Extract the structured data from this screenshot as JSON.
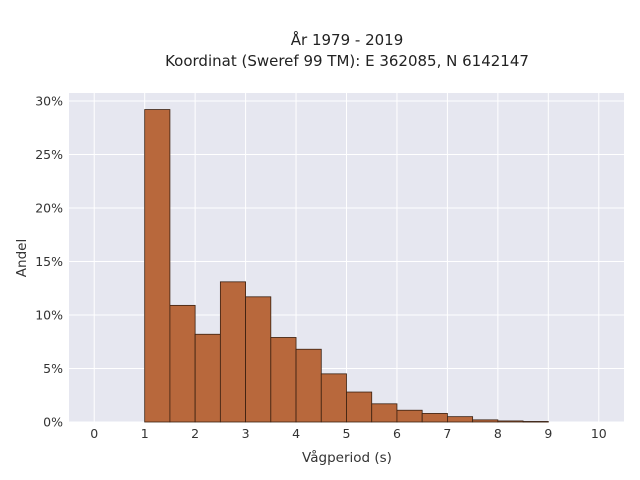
{
  "chart_data": {
    "type": "bar",
    "title_line1": "År 1979 - 2019",
    "title_line2": "Koordinat (Sweref 99 TM): E 362085, N 6142147",
    "xlabel": "Vågperiod (s)",
    "ylabel": "Andel",
    "xlim": [
      -0.5,
      10.5
    ],
    "ylim": [
      0,
      0.3
    ],
    "x_ticks": [
      "0",
      "1",
      "2",
      "3",
      "4",
      "5",
      "6",
      "7",
      "8",
      "9",
      "10"
    ],
    "y_ticks": [
      "0%",
      "5%",
      "10%",
      "15%",
      "20%",
      "25%",
      "30%"
    ],
    "grid": true,
    "bar_color": "#b8683c",
    "bar_edge_color": "#3a2010",
    "plot_background": "#e6e7f0",
    "bin_width": 0.5,
    "bins_start": [
      1.0,
      1.5,
      2.0,
      2.5,
      3.0,
      3.5,
      4.0,
      4.5,
      5.0,
      5.5,
      6.0,
      6.5,
      7.0,
      7.5,
      8.0,
      8.5
    ],
    "values": [
      0.292,
      0.109,
      0.082,
      0.131,
      0.117,
      0.079,
      0.068,
      0.045,
      0.028,
      0.017,
      0.011,
      0.008,
      0.005,
      0.002,
      0.001,
      0.0005
    ]
  }
}
